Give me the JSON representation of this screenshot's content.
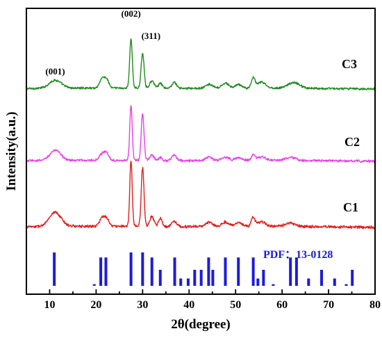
{
  "chart_data": {
    "type": "line",
    "xlabel": "2θ(degree)",
    "ylabel": "Intensity(a.u.)",
    "xlim": [
      5,
      80
    ],
    "x_ticks": [
      10,
      20,
      30,
      40,
      50,
      60,
      70,
      80
    ],
    "grid": false,
    "series": [
      {
        "name": "C3",
        "color": "#1f8a1f",
        "peaks": [
          {
            "x": 11.2,
            "height": 0.16,
            "width": 1.3
          },
          {
            "x": 21.2,
            "height": 0.17,
            "width": 0.5
          },
          {
            "x": 22.2,
            "height": 0.18,
            "width": 0.5
          },
          {
            "x": 27.5,
            "height": 0.99,
            "width": 0.28
          },
          {
            "x": 30.0,
            "height": 0.7,
            "width": 0.32
          },
          {
            "x": 32.0,
            "height": 0.15,
            "width": 0.45
          },
          {
            "x": 33.8,
            "height": 0.1,
            "width": 0.4
          },
          {
            "x": 36.8,
            "height": 0.12,
            "width": 0.5
          },
          {
            "x": 44.3,
            "height": 0.08,
            "width": 0.7
          },
          {
            "x": 47.8,
            "height": 0.1,
            "width": 0.7
          },
          {
            "x": 50.6,
            "height": 0.07,
            "width": 0.7
          },
          {
            "x": 53.8,
            "height": 0.2,
            "width": 0.4
          },
          {
            "x": 55.6,
            "height": 0.12,
            "width": 0.8
          },
          {
            "x": 61.8,
            "height": 0.07,
            "width": 1.0
          },
          {
            "x": 63.2,
            "height": 0.07,
            "width": 1.0
          }
        ]
      },
      {
        "name": "C2",
        "color": "#e83ee8",
        "peaks": [
          {
            "x": 11.2,
            "height": 0.18,
            "width": 1.2
          },
          {
            "x": 21.2,
            "height": 0.1,
            "width": 0.5
          },
          {
            "x": 22.2,
            "height": 0.14,
            "width": 0.5
          },
          {
            "x": 27.5,
            "height": 1.0,
            "width": 0.26
          },
          {
            "x": 30.0,
            "height": 0.84,
            "width": 0.3
          },
          {
            "x": 32.0,
            "height": 0.1,
            "width": 0.45
          },
          {
            "x": 33.8,
            "height": 0.06,
            "width": 0.4
          },
          {
            "x": 36.8,
            "height": 0.1,
            "width": 0.5
          },
          {
            "x": 44.3,
            "height": 0.06,
            "width": 0.7
          },
          {
            "x": 47.8,
            "height": 0.06,
            "width": 0.7
          },
          {
            "x": 50.6,
            "height": 0.05,
            "width": 0.7
          },
          {
            "x": 53.8,
            "height": 0.1,
            "width": 0.4
          },
          {
            "x": 55.6,
            "height": 0.06,
            "width": 0.8
          },
          {
            "x": 61.8,
            "height": 0.05,
            "width": 1.0
          }
        ]
      },
      {
        "name": "C1",
        "color": "#e11d1d",
        "peaks": [
          {
            "x": 11.2,
            "height": 0.22,
            "width": 1.3
          },
          {
            "x": 21.2,
            "height": 0.12,
            "width": 0.5
          },
          {
            "x": 22.2,
            "height": 0.13,
            "width": 0.5
          },
          {
            "x": 27.5,
            "height": 1.05,
            "width": 0.26
          },
          {
            "x": 30.0,
            "height": 0.94,
            "width": 0.3
          },
          {
            "x": 32.0,
            "height": 0.16,
            "width": 0.45
          },
          {
            "x": 33.8,
            "height": 0.13,
            "width": 0.4
          },
          {
            "x": 36.8,
            "height": 0.09,
            "width": 0.5
          },
          {
            "x": 44.3,
            "height": 0.07,
            "width": 0.7
          },
          {
            "x": 47.8,
            "height": 0.07,
            "width": 0.7
          },
          {
            "x": 50.6,
            "height": 0.06,
            "width": 0.7
          },
          {
            "x": 53.8,
            "height": 0.14,
            "width": 0.4
          },
          {
            "x": 55.6,
            "height": 0.07,
            "width": 0.8
          },
          {
            "x": 61.8,
            "height": 0.05,
            "width": 1.0
          }
        ]
      }
    ],
    "peak_annotations": [
      {
        "label": "(001)",
        "x": 11.2
      },
      {
        "label": "(002)",
        "x": 27.5
      },
      {
        "label": "(311)",
        "x": 30.0
      }
    ],
    "reference": {
      "label": "PDF：13-0128",
      "color": "#1b1bdc",
      "lines": [
        {
          "x": 11.0,
          "intensity": 1.0
        },
        {
          "x": 19.6,
          "intensity": 0.05
        },
        {
          "x": 21.0,
          "intensity": 0.85
        },
        {
          "x": 22.1,
          "intensity": 0.85
        },
        {
          "x": 27.5,
          "intensity": 1.0
        },
        {
          "x": 30.0,
          "intensity": 1.0
        },
        {
          "x": 32.0,
          "intensity": 0.85
        },
        {
          "x": 33.8,
          "intensity": 0.48
        },
        {
          "x": 36.9,
          "intensity": 0.85
        },
        {
          "x": 38.2,
          "intensity": 0.22
        },
        {
          "x": 39.8,
          "intensity": 0.22
        },
        {
          "x": 41.2,
          "intensity": 0.48
        },
        {
          "x": 42.6,
          "intensity": 0.48
        },
        {
          "x": 44.2,
          "intensity": 0.85
        },
        {
          "x": 45.1,
          "intensity": 0.48
        },
        {
          "x": 47.8,
          "intensity": 0.85
        },
        {
          "x": 50.6,
          "intensity": 0.85
        },
        {
          "x": 53.8,
          "intensity": 0.85
        },
        {
          "x": 54.8,
          "intensity": 0.22
        },
        {
          "x": 56.0,
          "intensity": 0.48
        },
        {
          "x": 58.1,
          "intensity": 0.05
        },
        {
          "x": 61.8,
          "intensity": 0.85
        },
        {
          "x": 63.1,
          "intensity": 0.85
        },
        {
          "x": 65.7,
          "intensity": 0.22
        },
        {
          "x": 68.5,
          "intensity": 0.48
        },
        {
          "x": 71.3,
          "intensity": 0.22
        },
        {
          "x": 73.8,
          "intensity": 0.05
        },
        {
          "x": 75.1,
          "intensity": 0.48
        }
      ]
    }
  }
}
